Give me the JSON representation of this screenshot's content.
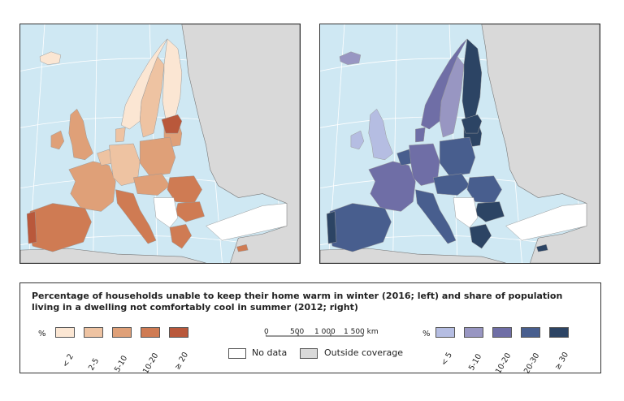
{
  "legend": {
    "title": "Percentage of households unable to keep their home warm in winter (2016; left) and share of population living in a dwelling not comfortably cool in summer (2012; right)",
    "winter": {
      "unit": "%",
      "classes": [
        {
          "label": "< 2",
          "color": "#fbe6d3"
        },
        {
          "label": "2-5",
          "color": "#eec3a2"
        },
        {
          "label": "5-10",
          "color": "#dfa078"
        },
        {
          "label": "10-20",
          "color": "#cf7b53"
        },
        {
          "label": "≥ 20",
          "color": "#b9583b"
        }
      ]
    },
    "summer": {
      "unit": "%",
      "classes": [
        {
          "label": "< 5",
          "color": "#b5bde2"
        },
        {
          "label": "5-10",
          "color": "#9896c2"
        },
        {
          "label": "10-20",
          "color": "#6f6ea6"
        },
        {
          "label": "20-30",
          "color": "#485e8e"
        },
        {
          "label": "≥ 30",
          "color": "#2c4464"
        }
      ]
    },
    "scale": {
      "ticks": [
        "0",
        "500",
        "1 000",
        "1 500 km"
      ]
    },
    "no_data": {
      "label": "No data",
      "color": "#ffffff"
    },
    "outside": {
      "label": "Outside coverage",
      "color": "#d9d9d9"
    }
  },
  "colors": {
    "sea": "#cfe8f3",
    "outside": "#d9d9d9",
    "graticule": "#ffffff",
    "border": "#555555"
  }
}
